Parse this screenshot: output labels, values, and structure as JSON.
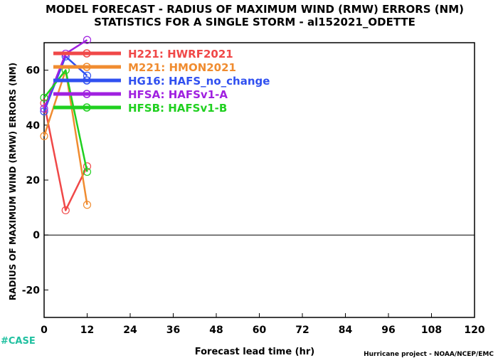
{
  "chart_data": {
    "type": "line",
    "title": "MODEL FORECAST - RADIUS OF MAXIMUM WIND (RMW) ERRORS (NM)",
    "subtitle": "STATISTICS FOR A SINGLE STORM - al152021_ODETTE",
    "xlabel": "Forecast lead time (hr)",
    "ylabel": "RADIUS OF MAXIMUM WIND (RMW) ERRORS (NM)",
    "xlim": [
      0,
      120
    ],
    "ylim": [
      -30,
      70
    ],
    "xticks": [
      0,
      12,
      24,
      36,
      48,
      60,
      72,
      84,
      96,
      108,
      120
    ],
    "yticks": [
      -20,
      0,
      20,
      40,
      60
    ],
    "ytick_labels": [
      "-20",
      "0",
      "20",
      "40",
      "60"
    ],
    "zero_line": true,
    "grid": false,
    "legend_position": "top-left",
    "series": [
      {
        "name": "H221: HWRF2021",
        "color": "#f04848",
        "x": [
          0,
          6,
          12
        ],
        "y": [
          48,
          9,
          25
        ]
      },
      {
        "name": "M221: HMON2021",
        "color": "#f08c30",
        "x": [
          0,
          6,
          12
        ],
        "y": [
          36,
          60,
          11
        ]
      },
      {
        "name": "HG16: HAFS_no_change",
        "color": "#3050f0",
        "x": [
          0,
          6,
          12
        ],
        "y": [
          45,
          65,
          58
        ]
      },
      {
        "name": "HFSA: HAFSv1-A",
        "color": "#a020e0",
        "x": [
          0,
          6,
          12
        ],
        "y": [
          46,
          66,
          71
        ]
      },
      {
        "name": "HFSB: HAFSv1-B",
        "color": "#20d020",
        "x": [
          0,
          6,
          12
        ],
        "y": [
          50,
          60,
          23
        ]
      }
    ]
  },
  "footer": {
    "case_tag": "#CASE",
    "credit": "Hurricane project - NOAA/NCEP/EMC"
  }
}
